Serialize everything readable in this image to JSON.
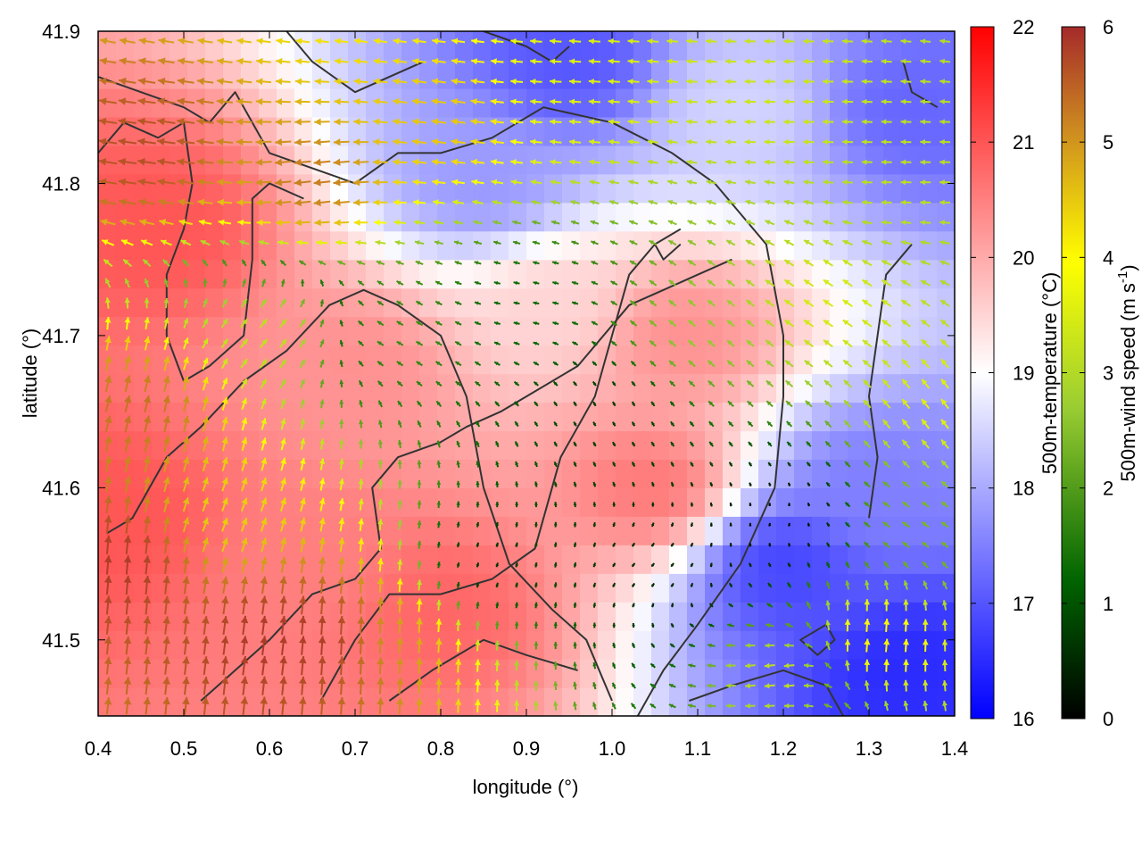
{
  "chart_data": {
    "type": "heatmap",
    "title": "",
    "xlabel": "longitude (°)",
    "ylabel": "latitude (°)",
    "xlim": [
      0.4,
      1.4
    ],
    "ylim": [
      41.45,
      41.9
    ],
    "x_ticks": [
      "0.4",
      "0.5",
      "0.6",
      "0.7",
      "0.8",
      "0.9",
      "1.0",
      "1.1",
      "1.2",
      "1.3",
      "1.4"
    ],
    "y_ticks": [
      "41.5",
      "41.6",
      "41.7",
      "41.8",
      "41.9"
    ],
    "temperature_colorbar": {
      "label": "500m-temperature (°C)",
      "range": [
        16,
        22
      ],
      "ticks": [
        "16",
        "17",
        "18",
        "19",
        "20",
        "21",
        "22"
      ],
      "colors": [
        "#0000ff",
        "#ffffff",
        "#ff0000"
      ]
    },
    "wind_colorbar": {
      "label_main": "500m-wind speed (m s",
      "label_sup": "-1",
      "label_end": ")",
      "range": [
        0,
        6
      ],
      "ticks": [
        "0",
        "1",
        "2",
        "3",
        "4",
        "5",
        "6"
      ],
      "colors": [
        "#000000",
        "#006400",
        "#9acd32",
        "#ffff00",
        "#cd8b20",
        "#a52a2a"
      ]
    },
    "temperature_regions": [
      {
        "x": 0.42,
        "y": 41.58,
        "t": 21.0
      },
      {
        "x": 0.47,
        "y": 41.77,
        "t": 21.0
      },
      {
        "x": 0.65,
        "y": 41.55,
        "t": 20.5
      },
      {
        "x": 0.8,
        "y": 41.52,
        "t": 20.8
      },
      {
        "x": 0.7,
        "y": 41.68,
        "t": 20.3
      },
      {
        "x": 1.05,
        "y": 41.6,
        "t": 20.6
      },
      {
        "x": 1.08,
        "y": 41.7,
        "t": 20.3
      },
      {
        "x": 0.93,
        "y": 41.72,
        "t": 19.5
      },
      {
        "x": 1.2,
        "y": 41.55,
        "t": 16.8
      },
      {
        "x": 1.3,
        "y": 41.6,
        "t": 17.5
      },
      {
        "x": 1.35,
        "y": 41.48,
        "t": 16.5
      },
      {
        "x": 1.35,
        "y": 41.85,
        "t": 17.2
      },
      {
        "x": 0.95,
        "y": 41.88,
        "t": 17.0
      },
      {
        "x": 0.85,
        "y": 41.8,
        "t": 17.8
      },
      {
        "x": 1.15,
        "y": 41.85,
        "t": 18.5
      }
    ],
    "contours": [
      [
        [
          0.4,
          41.87
        ],
        [
          0.45,
          41.86
        ],
        [
          0.5,
          41.85
        ],
        [
          0.53,
          41.84
        ],
        [
          0.56,
          41.86
        ],
        [
          0.6,
          41.82
        ],
        [
          0.65,
          41.81
        ],
        [
          0.7,
          41.8
        ],
        [
          0.75,
          41.82
        ],
        [
          0.8,
          41.82
        ],
        [
          0.86,
          41.83
        ],
        [
          0.92,
          41.85
        ],
        [
          1.0,
          41.84
        ],
        [
          1.07,
          41.82
        ],
        [
          1.12,
          41.8
        ],
        [
          1.15,
          41.78
        ],
        [
          1.18,
          41.76
        ],
        [
          1.2,
          41.7
        ],
        [
          1.2,
          41.66
        ],
        [
          1.19,
          41.6
        ],
        [
          1.15,
          41.55
        ],
        [
          1.1,
          41.51
        ],
        [
          1.06,
          41.48
        ],
        [
          1.03,
          41.45
        ]
      ],
      [
        [
          0.4,
          41.82
        ],
        [
          0.43,
          41.84
        ],
        [
          0.47,
          41.83
        ],
        [
          0.5,
          41.84
        ],
        [
          0.51,
          41.8
        ],
        [
          0.5,
          41.77
        ],
        [
          0.48,
          41.74
        ],
        [
          0.48,
          41.7
        ],
        [
          0.5,
          41.67
        ],
        [
          0.53,
          41.68
        ],
        [
          0.57,
          41.7
        ],
        [
          0.58,
          41.75
        ],
        [
          0.58,
          41.79
        ],
        [
          0.6,
          41.8
        ],
        [
          0.64,
          41.79
        ]
      ],
      [
        [
          0.41,
          41.57
        ],
        [
          0.44,
          41.58
        ],
        [
          0.48,
          41.62
        ],
        [
          0.52,
          41.64
        ],
        [
          0.57,
          41.67
        ],
        [
          0.62,
          41.69
        ],
        [
          0.67,
          41.72
        ],
        [
          0.71,
          41.73
        ],
        [
          0.75,
          41.72
        ],
        [
          0.8,
          41.7
        ],
        [
          0.83,
          41.66
        ],
        [
          0.85,
          41.6
        ],
        [
          0.88,
          41.55
        ],
        [
          0.93,
          41.52
        ],
        [
          0.97,
          41.5
        ],
        [
          1.0,
          41.46
        ]
      ],
      [
        [
          0.52,
          41.46
        ],
        [
          0.56,
          41.48
        ],
        [
          0.6,
          41.5
        ],
        [
          0.65,
          41.53
        ],
        [
          0.7,
          41.54
        ],
        [
          0.73,
          41.56
        ],
        [
          0.72,
          41.6
        ],
        [
          0.75,
          41.62
        ],
        [
          0.8,
          41.63
        ],
        [
          0.83,
          41.64
        ],
        [
          0.87,
          41.65
        ],
        [
          0.9,
          41.66
        ],
        [
          0.96,
          41.68
        ],
        [
          1.02,
          41.72
        ],
        [
          1.06,
          41.73
        ],
        [
          1.1,
          41.74
        ],
        [
          1.14,
          41.75
        ]
      ],
      [
        [
          0.66,
          41.46
        ],
        [
          0.7,
          41.5
        ],
        [
          0.74,
          41.53
        ],
        [
          0.8,
          41.53
        ],
        [
          0.86,
          41.54
        ],
        [
          0.91,
          41.56
        ],
        [
          0.94,
          41.62
        ],
        [
          0.98,
          41.66
        ],
        [
          1.0,
          41.7
        ],
        [
          1.02,
          41.74
        ],
        [
          1.05,
          41.76
        ],
        [
          1.08,
          41.77
        ]
      ],
      [
        [
          0.74,
          41.46
        ],
        [
          0.79,
          41.48
        ],
        [
          0.85,
          41.5
        ],
        [
          0.9,
          41.49
        ],
        [
          0.96,
          41.48
        ]
      ],
      [
        [
          1.09,
          41.46
        ],
        [
          1.14,
          41.47
        ],
        [
          1.2,
          41.48
        ],
        [
          1.25,
          41.47
        ],
        [
          1.27,
          41.45
        ]
      ],
      [
        [
          1.25,
          41.51
        ],
        [
          1.26,
          41.5
        ],
        [
          1.24,
          41.49
        ],
        [
          1.22,
          41.5
        ],
        [
          1.25,
          41.51
        ]
      ],
      [
        [
          1.3,
          41.58
        ],
        [
          1.31,
          41.62
        ],
        [
          1.3,
          41.66
        ],
        [
          1.31,
          41.7
        ],
        [
          1.32,
          41.74
        ],
        [
          1.35,
          41.76
        ]
      ],
      [
        [
          1.34,
          41.88
        ],
        [
          1.35,
          41.86
        ],
        [
          1.38,
          41.85
        ]
      ],
      [
        [
          0.62,
          41.9
        ],
        [
          0.65,
          41.88
        ],
        [
          0.7,
          41.86
        ],
        [
          0.74,
          41.87
        ],
        [
          0.78,
          41.88
        ]
      ],
      [
        [
          0.85,
          41.9
        ],
        [
          0.9,
          41.89
        ],
        [
          0.93,
          41.88
        ],
        [
          0.95,
          41.89
        ]
      ],
      [
        [
          1.05,
          41.76
        ],
        [
          1.06,
          41.75
        ],
        [
          1.08,
          41.76
        ]
      ]
    ],
    "wind_regions": [
      {
        "x": 0.45,
        "y": 41.82,
        "u": -5.5,
        "v": 0.8
      },
      {
        "x": 0.65,
        "y": 41.8,
        "u": -5.0,
        "v": -0.6
      },
      {
        "x": 0.8,
        "y": 41.84,
        "u": -4.2,
        "v": 0.6
      },
      {
        "x": 0.95,
        "y": 41.86,
        "u": -3.2,
        "v": 0.2
      },
      {
        "x": 1.2,
        "y": 41.85,
        "u": -3.0,
        "v": 0.0
      },
      {
        "x": 1.35,
        "y": 41.8,
        "u": -2.8,
        "v": 0.0
      },
      {
        "x": 0.43,
        "y": 41.55,
        "u": 0.5,
        "v": 5.8
      },
      {
        "x": 0.45,
        "y": 41.65,
        "u": 1.2,
        "v": 5.0
      },
      {
        "x": 0.55,
        "y": 41.58,
        "u": 1.5,
        "v": 3.8
      },
      {
        "x": 0.6,
        "y": 41.5,
        "u": 0.8,
        "v": 5.8
      },
      {
        "x": 0.68,
        "y": 41.5,
        "u": 0.3,
        "v": 6.0
      },
      {
        "x": 0.73,
        "y": 41.5,
        "u": 0.2,
        "v": 4.5
      },
      {
        "x": 0.6,
        "y": 41.7,
        "u": 2.0,
        "v": 2.2
      },
      {
        "x": 0.75,
        "y": 41.7,
        "u": -1.5,
        "v": 0.8
      },
      {
        "x": 0.9,
        "y": 41.72,
        "u": -1.2,
        "v": 0.2
      },
      {
        "x": 1.0,
        "y": 41.65,
        "u": -0.3,
        "v": 0.6
      },
      {
        "x": 0.85,
        "y": 41.55,
        "u": 0.2,
        "v": 0.5
      },
      {
        "x": 1.05,
        "y": 41.55,
        "u": 0.4,
        "v": 0.4
      },
      {
        "x": 1.2,
        "y": 41.58,
        "u": 0.1,
        "v": 0.1
      },
      {
        "x": 1.35,
        "y": 41.58,
        "u": -1.8,
        "v": 1.2
      },
      {
        "x": 1.38,
        "y": 41.65,
        "u": -2.0,
        "v": 2.6
      },
      {
        "x": 1.2,
        "y": 41.48,
        "u": -3.0,
        "v": -0.5
      },
      {
        "x": 1.3,
        "y": 41.5,
        "u": 0.5,
        "v": 4.0
      },
      {
        "x": 1.1,
        "y": 41.7,
        "u": -1.8,
        "v": 1.6
      },
      {
        "x": 1.25,
        "y": 41.72,
        "u": -2.6,
        "v": 1.8
      }
    ]
  }
}
